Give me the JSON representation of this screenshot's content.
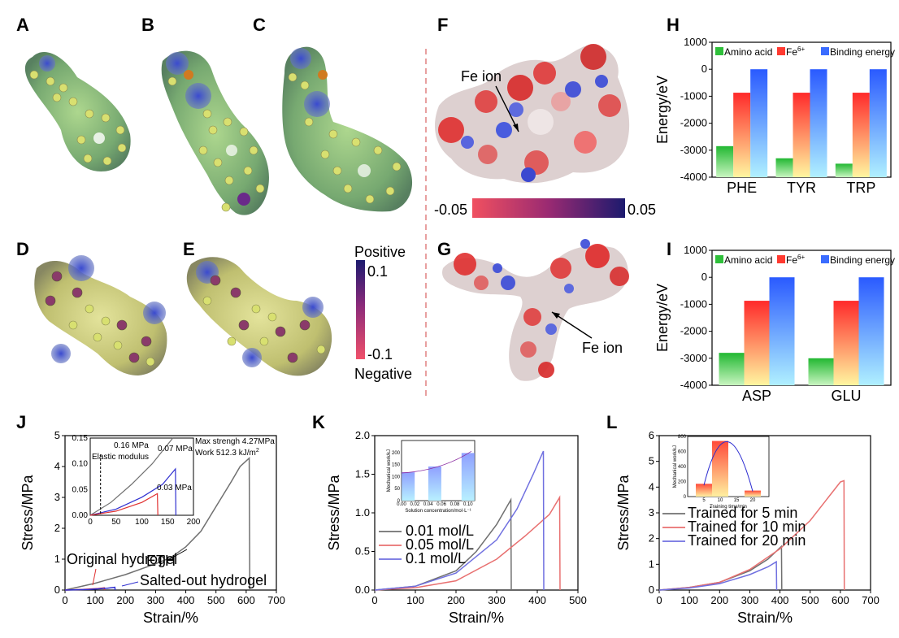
{
  "panel_labels": [
    "A",
    "B",
    "C",
    "D",
    "E",
    "F",
    "G",
    "H",
    "I",
    "J",
    "K",
    "L"
  ],
  "colorbar_de": {
    "top_title": "Positive",
    "top_value": "0.1",
    "bottom_value": "-0.1",
    "bottom_title": "Negative"
  },
  "colorbar_f": {
    "min": "-0.05",
    "max": "0.05"
  },
  "annotation_fe": "Fe ion",
  "chart_data": [
    {
      "id": "H",
      "type": "bar",
      "categories": [
        "PHE",
        "TYR",
        "TRP"
      ],
      "series": [
        {
          "name": "Amino acid",
          "color": "#2fbf3a",
          "values": [
            -2850,
            -3300,
            -3500
          ]
        },
        {
          "name": "Fe6+",
          "color": "#ff3a30",
          "values": [
            -870,
            -870,
            -870
          ]
        },
        {
          "name": "Binding energy",
          "color": "#3a6cff",
          "values": [
            0,
            0,
            0
          ]
        }
      ],
      "ylabel": "Energy/eV",
      "ylim": [
        -4000,
        1000
      ],
      "yticks": [
        "1000",
        "0",
        "-1000",
        "-2000",
        "-3000",
        "-4000"
      ]
    },
    {
      "id": "I",
      "type": "bar",
      "categories": [
        "ASP",
        "GLU"
      ],
      "series": [
        {
          "name": "Amino acid",
          "color": "#2fbf3a",
          "values": [
            -2800,
            -3000
          ]
        },
        {
          "name": "Fe6+",
          "color": "#ff3a30",
          "values": [
            -870,
            -870
          ]
        },
        {
          "name": "Binding energy",
          "color": "#3a6cff",
          "values": [
            0,
            0
          ]
        }
      ],
      "ylabel": "Energy/eV",
      "ylim": [
        -4000,
        1000
      ],
      "yticks": [
        "1000",
        "0",
        "-1000",
        "-2000",
        "-3000",
        "-4000"
      ]
    },
    {
      "id": "J",
      "type": "line",
      "xlabel": "Strain/%",
      "ylabel": "Stress/MPa",
      "xlim": [
        0,
        700
      ],
      "ylim": [
        0,
        5
      ],
      "xticks": [
        "0",
        "100",
        "200",
        "300",
        "400",
        "500",
        "600",
        "700"
      ],
      "yticks": [
        "0",
        "1",
        "2",
        "3",
        "4",
        "5"
      ],
      "series": [
        {
          "name": "ETH",
          "color": "#707070",
          "points": [
            [
              0,
              0
            ],
            [
              100,
              0.22
            ],
            [
              200,
              0.5
            ],
            [
              300,
              0.85
            ],
            [
              350,
              1.05
            ],
            [
              400,
              1.4
            ],
            [
              450,
              1.9
            ],
            [
              500,
              2.7
            ],
            [
              550,
              3.5
            ],
            [
              580,
              4.0
            ],
            [
              610,
              4.27
            ],
            [
              612,
              0
            ]
          ]
        },
        {
          "name": "Original hydrogel",
          "color": "#e03030",
          "points": [
            [
              0,
              0
            ],
            [
              60,
              0.02
            ],
            [
              110,
              0.05
            ],
            [
              130,
              0.07
            ],
            [
              131,
              0
            ]
          ]
        },
        {
          "name": "Salted-out hydrogel",
          "color": "#3030d0",
          "points": [
            [
              0,
              0
            ],
            [
              80,
              0.02
            ],
            [
              140,
              0.06
            ],
            [
              165,
              0.09
            ],
            [
              166,
              0
            ]
          ]
        }
      ],
      "annotations": {
        "max": "Max strengh 4.27MPa",
        "work": "Work 512.3 kJ/m",
        "work_sup": "2",
        "eth": "ETH",
        "orig": "Original hydrogel",
        "salted": "Salted-out hydrogel"
      },
      "inset": {
        "xlim": [
          0,
          200
        ],
        "ylim": [
          0,
          0.15
        ],
        "xticks": [
          "0",
          "50",
          "100",
          "150",
          "200"
        ],
        "yticks": [
          "0.00",
          "0.05",
          "0.10",
          "0.15"
        ],
        "labels": {
          "gray": "0.16 MPa",
          "blue": "0.07 MPa",
          "red": "0.03 MPa",
          "modulus": "Elastic modulus"
        },
        "series": [
          {
            "color": "#707070",
            "points": [
              [
                0,
                0
              ],
              [
                40,
                0.025
              ],
              [
                80,
                0.06
              ],
              [
                120,
                0.1
              ],
              [
                160,
                0.15
              ]
            ]
          },
          {
            "color": "#3030d0",
            "points": [
              [
                0,
                0
              ],
              [
                50,
                0.012
              ],
              [
                100,
                0.035
              ],
              [
                140,
                0.06
              ],
              [
                165,
                0.09
              ],
              [
                166,
                0
              ]
            ]
          },
          {
            "color": "#e03030",
            "points": [
              [
                0,
                0
              ],
              [
                50,
                0.008
              ],
              [
                100,
                0.025
              ],
              [
                130,
                0.042
              ],
              [
                131,
                0
              ]
            ]
          }
        ]
      }
    },
    {
      "id": "K",
      "type": "line",
      "xlabel": "Strain/%",
      "ylabel": "Stress/MPa",
      "xlim": [
        0,
        500
      ],
      "ylim": [
        0,
        2.0
      ],
      "xticks": [
        "0",
        "100",
        "200",
        "300",
        "400",
        "500"
      ],
      "yticks": [
        "0.0",
        "0.5",
        "1.0",
        "1.5",
        "2.0"
      ],
      "series": [
        {
          "name": "0.01 mol/L",
          "color": "#707070",
          "points": [
            [
              0,
              0
            ],
            [
              100,
              0.05
            ],
            [
              200,
              0.25
            ],
            [
              250,
              0.5
            ],
            [
              300,
              0.85
            ],
            [
              335,
              1.17
            ],
            [
              336,
              0
            ]
          ]
        },
        {
          "name": "0.05 mol/L",
          "color": "#e87070",
          "points": [
            [
              0,
              0
            ],
            [
              100,
              0.03
            ],
            [
              200,
              0.12
            ],
            [
              300,
              0.4
            ],
            [
              370,
              0.7
            ],
            [
              430,
              0.98
            ],
            [
              455,
              1.2
            ],
            [
              456,
              0
            ]
          ]
        },
        {
          "name": "0.1 mol/L",
          "color": "#7070e0",
          "points": [
            [
              0,
              0
            ],
            [
              100,
              0.05
            ],
            [
              200,
              0.22
            ],
            [
              300,
              0.65
            ],
            [
              350,
              1.05
            ],
            [
              390,
              1.5
            ],
            [
              415,
              1.8
            ],
            [
              416,
              0
            ]
          ]
        }
      ],
      "inset": {
        "xlabel": "Solution concentration/mol·L⁻¹",
        "ylabel": "Mechanical work/kJ",
        "xticks": [
          "0.00",
          "0.02",
          "0.04",
          "0.06",
          "0.08",
          "0.10"
        ],
        "yticks": [
          "0",
          "50",
          "100",
          "150",
          "200"
        ],
        "categories": [
          0.01,
          0.05,
          0.1
        ],
        "values": [
          118,
          142,
          198
        ]
      }
    },
    {
      "id": "L",
      "type": "line",
      "xlabel": "Strain/%",
      "ylabel": "Stress/MPa",
      "xlim": [
        0,
        700
      ],
      "ylim": [
        0,
        6
      ],
      "xticks": [
        "0",
        "100",
        "200",
        "300",
        "400",
        "500",
        "600",
        "700"
      ],
      "yticks": [
        "0",
        "1",
        "2",
        "3",
        "4",
        "5",
        "6"
      ],
      "series": [
        {
          "name": "Trained for 5 min",
          "color": "#707070",
          "points": [
            [
              0,
              0
            ],
            [
              100,
              0.1
            ],
            [
              200,
              0.3
            ],
            [
              300,
              0.75
            ],
            [
              360,
              1.2
            ],
            [
              405,
              1.7
            ],
            [
              406,
              0
            ]
          ]
        },
        {
          "name": "Trained for 10 min",
          "color": "#e87070",
          "points": [
            [
              0,
              0
            ],
            [
              100,
              0.1
            ],
            [
              200,
              0.3
            ],
            [
              300,
              0.8
            ],
            [
              400,
              1.6
            ],
            [
              500,
              2.7
            ],
            [
              560,
              3.6
            ],
            [
              600,
              4.2
            ],
            [
              612,
              4.25
            ],
            [
              613,
              0
            ]
          ]
        },
        {
          "name": "Trained for 20 min",
          "color": "#7070e0",
          "points": [
            [
              0,
              0
            ],
            [
              100,
              0.08
            ],
            [
              200,
              0.25
            ],
            [
              300,
              0.6
            ],
            [
              360,
              0.9
            ],
            [
              388,
              1.1
            ],
            [
              389,
              0
            ]
          ]
        }
      ],
      "inset": {
        "xlabel": "Training time/min",
        "ylabel": "Mechanical work/kJ",
        "xticks": [
          "5",
          "10",
          "15",
          "20"
        ],
        "yticks": [
          "0",
          "200",
          "400",
          "600",
          "800"
        ],
        "categories": [
          5,
          10,
          20
        ],
        "values": [
          170,
          740,
          80
        ]
      }
    }
  ]
}
